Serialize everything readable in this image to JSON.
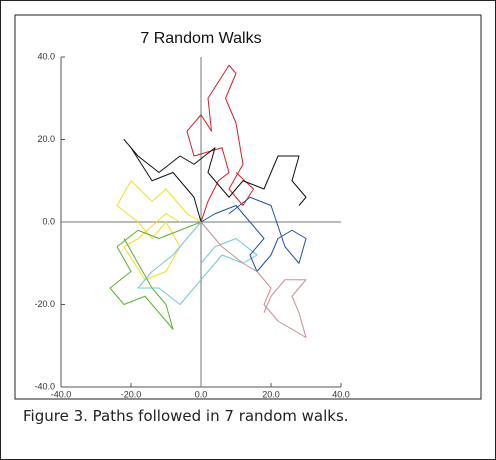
{
  "chart_data": {
    "type": "line",
    "title": "7 Random Walks",
    "xlim": [
      -40,
      40
    ],
    "ylim": [
      -40,
      40
    ],
    "xticks": [
      {
        "value": -40,
        "label": "-40.0"
      },
      {
        "value": -20,
        "label": "-20.0"
      },
      {
        "value": 0,
        "label": "0.0"
      },
      {
        "value": 20,
        "label": "20.0"
      },
      {
        "value": 40,
        "label": "40.0"
      }
    ],
    "yticks": [
      {
        "value": -40,
        "label": "-40.0"
      },
      {
        "value": -20,
        "label": "-20.0"
      },
      {
        "value": 0,
        "label": "0.0"
      },
      {
        "value": 20,
        "label": "20.0"
      },
      {
        "value": 40,
        "label": "40.0"
      }
    ],
    "series": [
      {
        "color": "#d0202a",
        "x": [
          0,
          2,
          5,
          8,
          6,
          -2,
          -4,
          0,
          3,
          2,
          5,
          8,
          10,
          7,
          10,
          12,
          8,
          12,
          15,
          10
        ],
        "values": [
          0,
          5,
          10,
          12,
          18,
          16,
          22,
          26,
          22,
          30,
          34,
          38,
          36,
          30,
          24,
          14,
          8,
          4,
          8,
          12
        ]
      },
      {
        "color": "#111111",
        "x": [
          0,
          -2,
          -8,
          -14,
          -20,
          -22,
          -18,
          -12,
          -6,
          -2,
          4,
          2,
          8,
          12,
          18,
          22,
          28,
          26,
          30,
          28
        ],
        "values": [
          0,
          6,
          12,
          10,
          18,
          20,
          16,
          12,
          16,
          14,
          18,
          12,
          6,
          10,
          8,
          16,
          16,
          10,
          6,
          4
        ]
      },
      {
        "color": "#f0e020",
        "x": [
          0,
          -4,
          -10,
          -14,
          -20,
          -24,
          -18,
          -14,
          -10,
          -6,
          -10,
          -16,
          -22,
          -18,
          -10,
          -6
        ],
        "values": [
          0,
          2,
          8,
          5,
          10,
          4,
          0,
          -4,
          0,
          -6,
          -12,
          -14,
          -6,
          -4,
          2,
          0
        ]
      },
      {
        "color": "#5cb030",
        "x": [
          0,
          -6,
          -12,
          -18,
          -24,
          -20,
          -26,
          -22,
          -16,
          -12,
          -8,
          -10,
          -14,
          -18,
          -22
        ],
        "values": [
          0,
          -2,
          -4,
          -2,
          -6,
          -12,
          -16,
          -20,
          -18,
          -22,
          -26,
          -20,
          -16,
          -10,
          -4
        ]
      },
      {
        "color": "#70c8d0",
        "x": [
          0,
          -4,
          -8,
          -14,
          -18,
          -12,
          -6,
          -2,
          2,
          6,
          12,
          16,
          10,
          4,
          0
        ],
        "values": [
          0,
          -4,
          -8,
          -12,
          -16,
          -16,
          -20,
          -16,
          -12,
          -8,
          -10,
          -8,
          -4,
          -6,
          -10
        ]
      },
      {
        "color": "#2050a0",
        "x": [
          0,
          4,
          10,
          14,
          18,
          14,
          16,
          20,
          22,
          26,
          30,
          28,
          24,
          20,
          14,
          8
        ],
        "values": [
          0,
          2,
          4,
          0,
          -4,
          -8,
          -12,
          -8,
          -4,
          -2,
          -4,
          -10,
          -6,
          4,
          6,
          2
        ]
      },
      {
        "color": "#c89090",
        "x": [
          0,
          6,
          12,
          16,
          20,
          18,
          22,
          26,
          30,
          28,
          26,
          30,
          24,
          20,
          18
        ],
        "values": [
          0,
          -6,
          -10,
          -12,
          -16,
          -20,
          -24,
          -26,
          -28,
          -22,
          -18,
          -14,
          -14,
          -18,
          -22
        ]
      }
    ]
  },
  "caption": "Figure 3.  Paths followed in 7 random walks."
}
